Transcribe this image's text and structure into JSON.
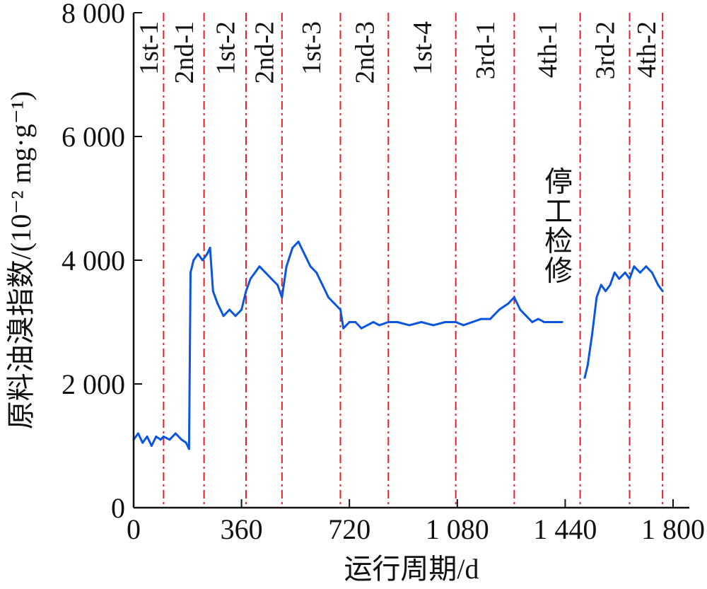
{
  "chart_data": {
    "type": "line",
    "title": "",
    "xlabel": "运行周期/d",
    "ylabel": "原料油溴指数/(10⁻² mg·g⁻¹)",
    "xlim": [
      0,
      1800
    ],
    "ylim": [
      0,
      8000
    ],
    "xticks": [
      {
        "value": 0,
        "label": "0"
      },
      {
        "value": 360,
        "label": "360"
      },
      {
        "value": 720,
        "label": "720"
      },
      {
        "value": 1080,
        "label": "1 080"
      },
      {
        "value": 1440,
        "label": "1 440"
      },
      {
        "value": 1800,
        "label": "1 800"
      }
    ],
    "yticks": [
      {
        "value": 0,
        "label": "0"
      },
      {
        "value": 2000,
        "label": "2 000"
      },
      {
        "value": 4000,
        "label": "4 000"
      },
      {
        "value": 6000,
        "label": "6 000"
      },
      {
        "value": 8000,
        "label": "8 000"
      }
    ],
    "line_color": "#0b55e0",
    "divider_color": "#e0202a",
    "dividers": [
      100,
      235,
      375,
      495,
      690,
      850,
      1075,
      1270,
      1490,
      1655,
      1765
    ],
    "segments": [
      {
        "label": "1st-1",
        "x": 50
      },
      {
        "label": "2nd-1",
        "x": 168
      },
      {
        "label": "1st-2",
        "x": 305
      },
      {
        "label": "2nd-2",
        "x": 435
      },
      {
        "label": "1st-3",
        "x": 592
      },
      {
        "label": "2nd-3",
        "x": 770
      },
      {
        "label": "1st-4",
        "x": 962
      },
      {
        "label": "3rd-1",
        "x": 1172
      },
      {
        "label": "4th-1",
        "x": 1380
      },
      {
        "label": "3rd-2",
        "x": 1572
      },
      {
        "label": "4th-2",
        "x": 1710
      }
    ],
    "annotation": {
      "text": "停工检修",
      "x": 1410,
      "y": 5400
    },
    "series": [
      {
        "name": "",
        "x": [
          0,
          15,
          30,
          45,
          60,
          75,
          90,
          100,
          120,
          140,
          160,
          175,
          185,
          190,
          200,
          215,
          230,
          245,
          255,
          265,
          280,
          300,
          320,
          340,
          360,
          375,
          390,
          405,
          420,
          440,
          460,
          480,
          495,
          510,
          530,
          550,
          570,
          590,
          610,
          630,
          650,
          670,
          690,
          700,
          720,
          740,
          760,
          780,
          800,
          820,
          850,
          880,
          920,
          960,
          1000,
          1040,
          1075,
          1100,
          1130,
          1160,
          1190,
          1220,
          1250,
          1270,
          1290,
          1310,
          1330,
          1350,
          1370,
          1390,
          1420,
          1430,
          1440,
          1460,
          1475,
          1485,
          1495,
          1505,
          1515,
          1530,
          1545,
          1560,
          1575,
          1590,
          1605,
          1620,
          1640,
          1655,
          1670,
          1690,
          1710,
          1730,
          1750,
          1765
        ],
        "y": [
          1100,
          1200,
          1050,
          1150,
          1000,
          1150,
          1100,
          1150,
          1100,
          1200,
          1100,
          1050,
          950,
          3800,
          4000,
          4100,
          4000,
          4100,
          4200,
          3500,
          3300,
          3100,
          3200,
          3100,
          3200,
          3500,
          3700,
          3800,
          3900,
          3800,
          3700,
          3600,
          3400,
          3900,
          4200,
          4300,
          4100,
          3900,
          3800,
          3600,
          3400,
          3300,
          3200,
          2900,
          3000,
          3000,
          2900,
          2950,
          3000,
          2950,
          3000,
          3000,
          2950,
          3000,
          2950,
          3000,
          3000,
          2950,
          3000,
          3050,
          3050,
          3200,
          3300,
          3400,
          3200,
          3100,
          3000,
          3050,
          3000,
          3000,
          3000,
          3000,
          null,
          null,
          null,
          null,
          null,
          2100,
          2300,
          2800,
          3400,
          3600,
          3500,
          3600,
          3800,
          3700,
          3800,
          3700,
          3900,
          3800,
          3900,
          3800,
          3600,
          3500
        ]
      }
    ]
  }
}
